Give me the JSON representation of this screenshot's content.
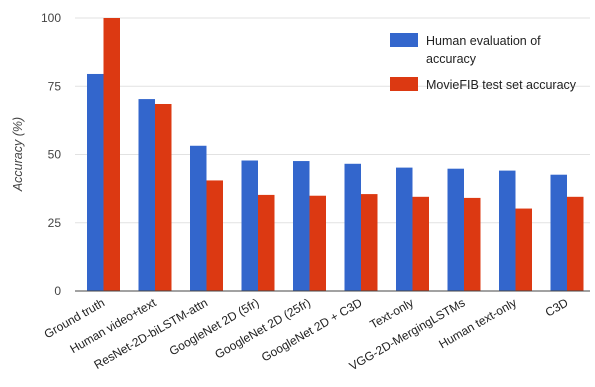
{
  "chart_data": {
    "type": "bar",
    "title": "",
    "xlabel": "",
    "ylabel": "Accuracy (%)",
    "ylim": [
      0,
      100
    ],
    "yticks": [
      0,
      25,
      50,
      75,
      100
    ],
    "grid": true,
    "legend_position": "top-right",
    "categories": [
      "Ground truth",
      "Human video+text",
      "ResNet-2D-biLSTM-attn",
      "GoogleNet 2D (5fr)",
      "GoogleNet 2D (25fr)",
      "GoogleNet 2D + C3D",
      "Text-only",
      "VGG-2D-MergingLSTMs",
      "Human text-only",
      "C3D"
    ],
    "series": [
      {
        "name": "Human evaluation of accuracy",
        "legend_lines": [
          "Human evaluation of",
          "accuracy"
        ],
        "color": "#3366cc",
        "values": [
          79.5,
          70.3,
          53.2,
          47.8,
          47.6,
          46.6,
          45.2,
          44.8,
          44.1,
          42.6
        ]
      },
      {
        "name": "MovieFIB test set accuracy",
        "legend_lines": [
          "MovieFIB test set accuracy"
        ],
        "color": "#dc3912",
        "values": [
          100,
          68.5,
          40.5,
          35.2,
          34.9,
          35.5,
          34.5,
          34.1,
          30.2,
          34.5
        ]
      }
    ]
  }
}
